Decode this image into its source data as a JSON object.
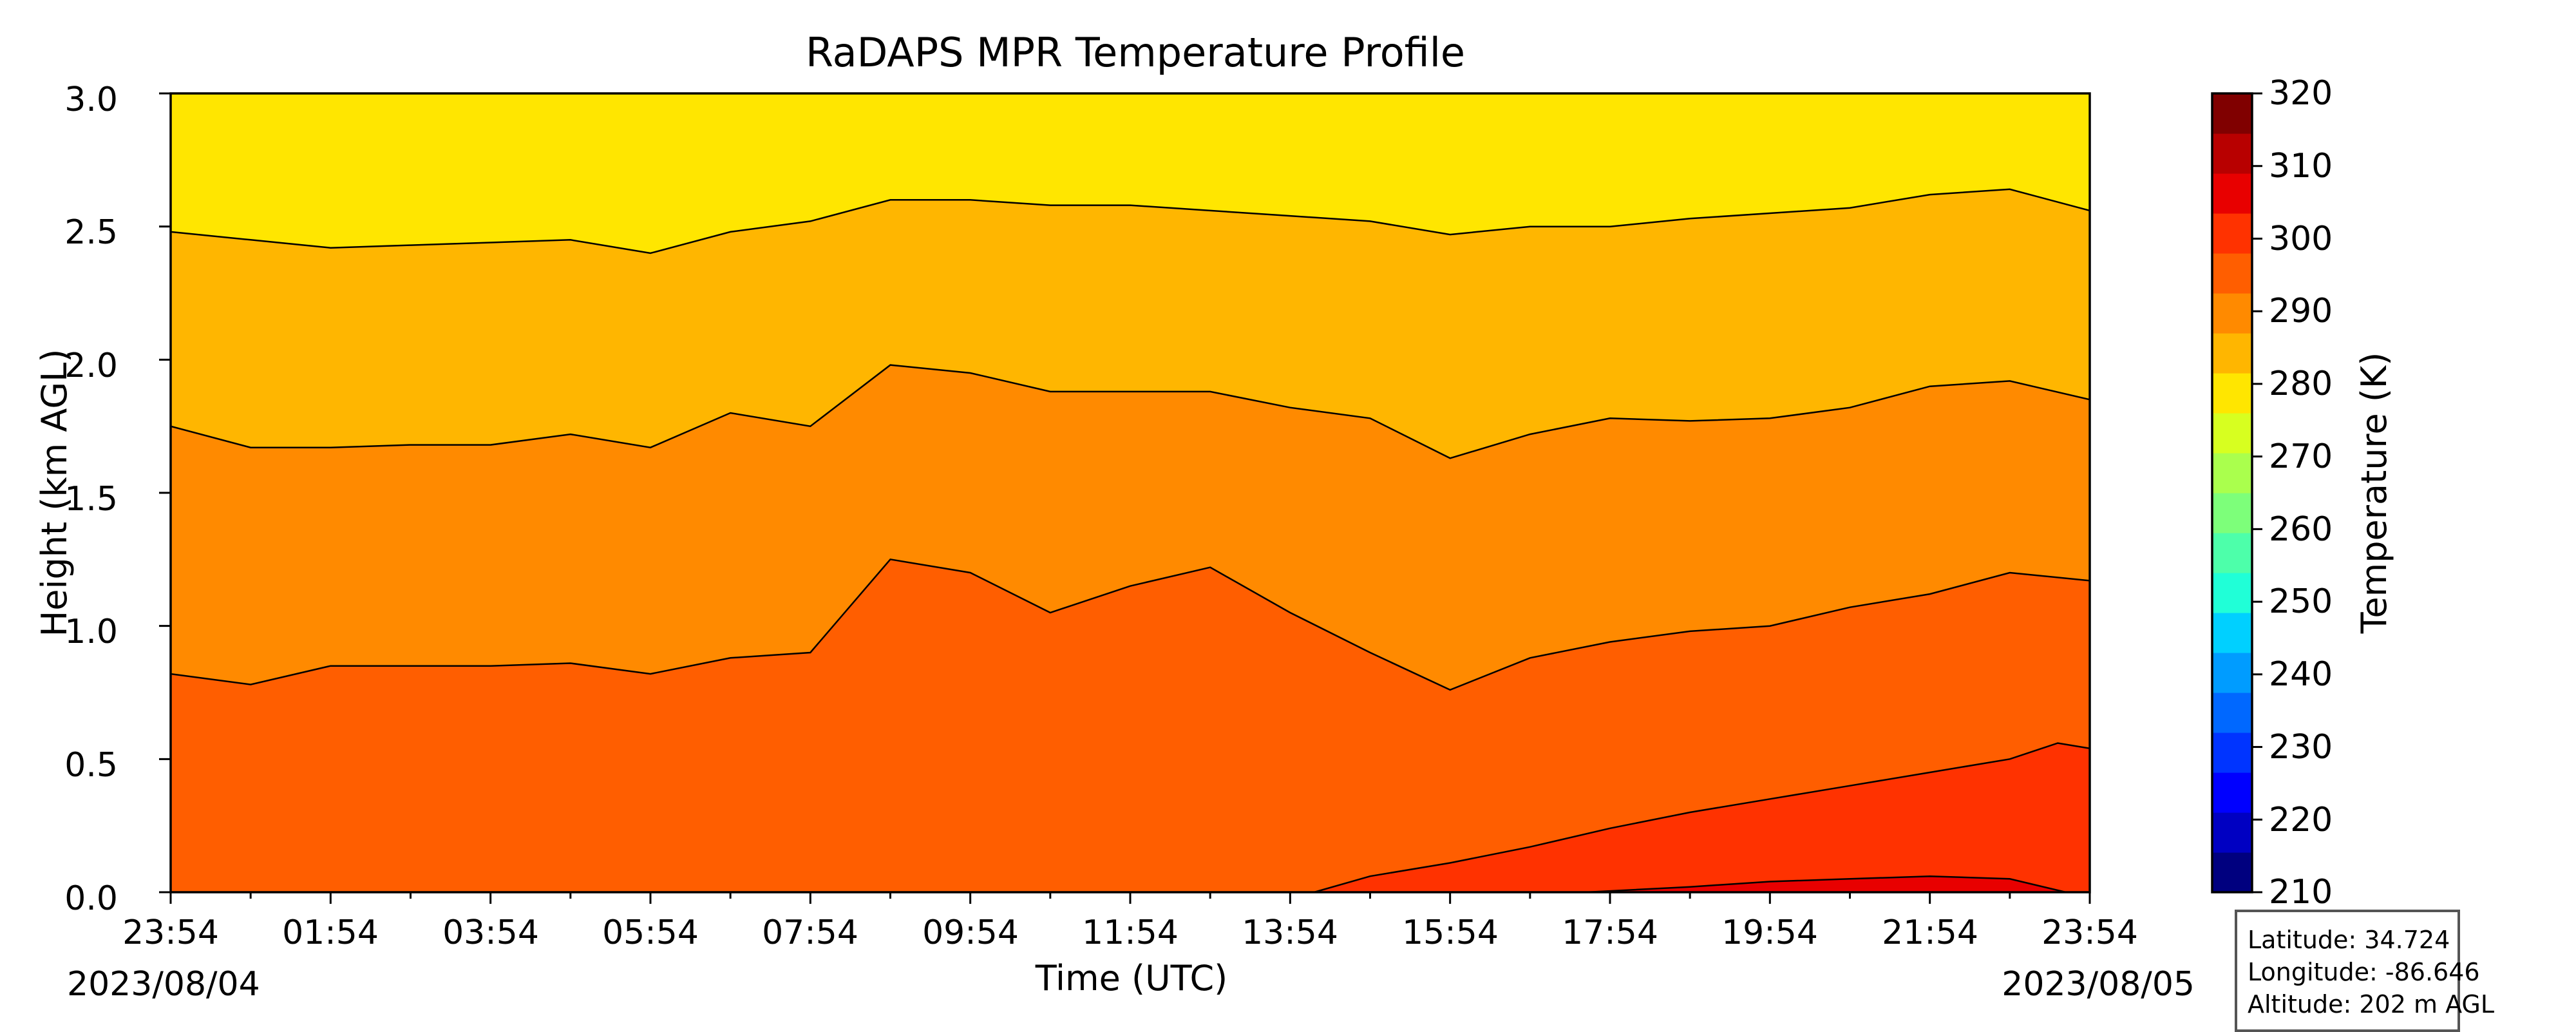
{
  "chart_data": {
    "type": "heatmap",
    "title": "RaDAPS MPR Temperature Profile",
    "xlabel": "Time (UTC)",
    "ylabel": "Height (km AGL)",
    "x_tick_labels": [
      "23:54",
      "01:54",
      "03:54",
      "05:54",
      "07:54",
      "09:54",
      "11:54",
      "13:54",
      "15:54",
      "17:54",
      "19:54",
      "21:54",
      "23:54"
    ],
    "x_hours": [
      0,
      2,
      4,
      6,
      8,
      10,
      12,
      14,
      16,
      18,
      20,
      22,
      24
    ],
    "start_date": "2023/08/04",
    "end_date": "2023/08/05",
    "ylim": [
      0.0,
      3.0
    ],
    "y_tick_labels": [
      "0.0",
      "0.5",
      "1.0",
      "1.5",
      "2.0",
      "2.5",
      "3.0"
    ],
    "colorbar": {
      "label": "Temperature (K)",
      "range": [
        210,
        320
      ],
      "tick_labels": [
        "210",
        "220",
        "230",
        "240",
        "250",
        "260",
        "270",
        "280",
        "290",
        "300",
        "310",
        "320"
      ],
      "colors": [
        "#00007f",
        "#0000c2",
        "#0000ff",
        "#0034ff",
        "#0068ff",
        "#009cff",
        "#00d0ff",
        "#20ffd7",
        "#4dffaa",
        "#7dff7a",
        "#aaff4d",
        "#d7ff20",
        "#ffe600",
        "#ffb600",
        "#ff8a00",
        "#ff5e00",
        "#ff3200",
        "#e80000",
        "#b80000",
        "#800000"
      ]
    },
    "temperature_bands": [
      {
        "range_K": [
          280,
          285
        ],
        "color": "#ffe600"
      },
      {
        "range_K": [
          285,
          290
        ],
        "color": "#ffb600"
      },
      {
        "range_K": [
          290,
          295
        ],
        "color": "#ff8a00"
      },
      {
        "range_K": [
          295,
          300
        ],
        "color": "#ff5e00"
      },
      {
        "range_K": [
          300,
          305
        ],
        "color": "#ff3200"
      },
      {
        "range_K": [
          305,
          310
        ],
        "color": "#e80000"
      }
    ],
    "contours": [
      {
        "level_K": 285,
        "points": [
          [
            0,
            2.48
          ],
          [
            1,
            2.45
          ],
          [
            2,
            2.42
          ],
          [
            3,
            2.43
          ],
          [
            4,
            2.44
          ],
          [
            5,
            2.45
          ],
          [
            6,
            2.4
          ],
          [
            7,
            2.48
          ],
          [
            8,
            2.52
          ],
          [
            9,
            2.6
          ],
          [
            10,
            2.6
          ],
          [
            11,
            2.58
          ],
          [
            12,
            2.58
          ],
          [
            13,
            2.56
          ],
          [
            14,
            2.54
          ],
          [
            15,
            2.52
          ],
          [
            16,
            2.47
          ],
          [
            17,
            2.5
          ],
          [
            18,
            2.5
          ],
          [
            19,
            2.53
          ],
          [
            20,
            2.55
          ],
          [
            21,
            2.57
          ],
          [
            22,
            2.62
          ],
          [
            23,
            2.64
          ],
          [
            24,
            2.56
          ]
        ]
      },
      {
        "level_K": 290,
        "points": [
          [
            0,
            1.75
          ],
          [
            1,
            1.67
          ],
          [
            2,
            1.67
          ],
          [
            3,
            1.68
          ],
          [
            4,
            1.68
          ],
          [
            5,
            1.72
          ],
          [
            6,
            1.67
          ],
          [
            7,
            1.8
          ],
          [
            8,
            1.75
          ],
          [
            9,
            1.98
          ],
          [
            10,
            1.95
          ],
          [
            11,
            1.88
          ],
          [
            12,
            1.88
          ],
          [
            13,
            1.88
          ],
          [
            14,
            1.82
          ],
          [
            15,
            1.78
          ],
          [
            16,
            1.63
          ],
          [
            17,
            1.72
          ],
          [
            18,
            1.78
          ],
          [
            19,
            1.77
          ],
          [
            20,
            1.78
          ],
          [
            21,
            1.82
          ],
          [
            22,
            1.9
          ],
          [
            23,
            1.92
          ],
          [
            24,
            1.85
          ]
        ]
      },
      {
        "level_K": 295,
        "points": [
          [
            0,
            0.82
          ],
          [
            1,
            0.78
          ],
          [
            2,
            0.85
          ],
          [
            3,
            0.85
          ],
          [
            4,
            0.85
          ],
          [
            5,
            0.86
          ],
          [
            6,
            0.82
          ],
          [
            7,
            0.88
          ],
          [
            8,
            0.9
          ],
          [
            9,
            1.25
          ],
          [
            10,
            1.2
          ],
          [
            11,
            1.05
          ],
          [
            12,
            1.15
          ],
          [
            13,
            1.22
          ],
          [
            14,
            1.05
          ],
          [
            15,
            0.9
          ],
          [
            16,
            0.76
          ],
          [
            17,
            0.88
          ],
          [
            18,
            0.94
          ],
          [
            19,
            0.98
          ],
          [
            20,
            1.0
          ],
          [
            21,
            1.07
          ],
          [
            22,
            1.12
          ],
          [
            23,
            1.2
          ],
          [
            24,
            1.17
          ]
        ]
      },
      {
        "level_K": 300,
        "points": [
          [
            14.3,
            0.0
          ],
          [
            15,
            0.06
          ],
          [
            16,
            0.11
          ],
          [
            17,
            0.17
          ],
          [
            18,
            0.24
          ],
          [
            19,
            0.3
          ],
          [
            20,
            0.35
          ],
          [
            21,
            0.4
          ],
          [
            22,
            0.45
          ],
          [
            23,
            0.5
          ],
          [
            23.6,
            0.56
          ],
          [
            24,
            0.54
          ]
        ]
      },
      {
        "level_K": 305,
        "points": [
          [
            17.7,
            0.0
          ],
          [
            19,
            0.02
          ],
          [
            20,
            0.04
          ],
          [
            21,
            0.05
          ],
          [
            22,
            0.06
          ],
          [
            23,
            0.05
          ],
          [
            23.7,
            0.0
          ]
        ]
      }
    ],
    "station": {
      "latitude": "Latitude: 34.724",
      "longitude": "Longitude: -86.646",
      "altitude": "Altitude: 202 m AGL"
    }
  }
}
